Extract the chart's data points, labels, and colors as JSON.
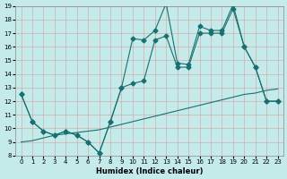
{
  "xlabel": "Humidex (Indice chaleur)",
  "bg_color": "#c5eaea",
  "grid_color": "#aed4d4",
  "line_color": "#1a7070",
  "xlim": [
    -0.5,
    23.5
  ],
  "ylim": [
    8,
    19
  ],
  "xticks": [
    0,
    1,
    2,
    3,
    4,
    5,
    6,
    7,
    8,
    9,
    10,
    11,
    12,
    13,
    14,
    15,
    16,
    17,
    18,
    19,
    20,
    21,
    22,
    23
  ],
  "yticks": [
    8,
    9,
    10,
    11,
    12,
    13,
    14,
    15,
    16,
    17,
    18,
    19
  ],
  "line1_x": [
    0,
    1,
    2,
    3,
    4,
    5,
    6,
    7,
    8,
    9,
    10,
    11,
    12,
    13,
    14,
    15,
    16,
    17,
    18,
    19,
    20,
    21,
    22,
    23
  ],
  "line1_y": [
    9.0,
    9.1,
    9.3,
    9.5,
    9.6,
    9.7,
    9.8,
    9.9,
    10.1,
    10.3,
    10.5,
    10.7,
    10.9,
    11.1,
    11.3,
    11.5,
    11.7,
    11.9,
    12.1,
    12.3,
    12.5,
    12.6,
    12.8,
    12.9
  ],
  "line2_x": [
    0,
    1,
    2,
    3,
    4,
    5,
    6,
    7,
    8,
    9,
    10,
    11,
    12,
    13,
    14,
    15,
    16,
    17,
    18,
    19,
    20,
    21,
    22,
    23
  ],
  "line2_y": [
    12.5,
    10.5,
    9.8,
    9.5,
    9.8,
    9.5,
    9.0,
    8.2,
    10.5,
    13.0,
    13.3,
    13.5,
    16.5,
    16.8,
    14.5,
    14.5,
    17.0,
    17.0,
    17.0,
    18.8,
    16.0,
    14.5,
    12.0,
    12.0
  ],
  "line3_x": [
    0,
    1,
    2,
    3,
    4,
    5,
    6,
    7,
    8,
    9,
    10,
    11,
    12,
    13,
    14,
    15,
    16,
    17,
    18,
    19,
    20,
    21,
    22,
    23
  ],
  "line3_y": [
    12.5,
    10.5,
    9.8,
    9.5,
    9.8,
    9.5,
    9.0,
    8.2,
    10.5,
    13.0,
    16.6,
    16.5,
    17.2,
    19.2,
    14.8,
    14.7,
    17.5,
    17.2,
    17.2,
    19.1,
    16.0,
    14.5,
    12.0,
    12.0
  ],
  "marker": "D",
  "marker_size": 2.5,
  "linewidth": 0.8
}
